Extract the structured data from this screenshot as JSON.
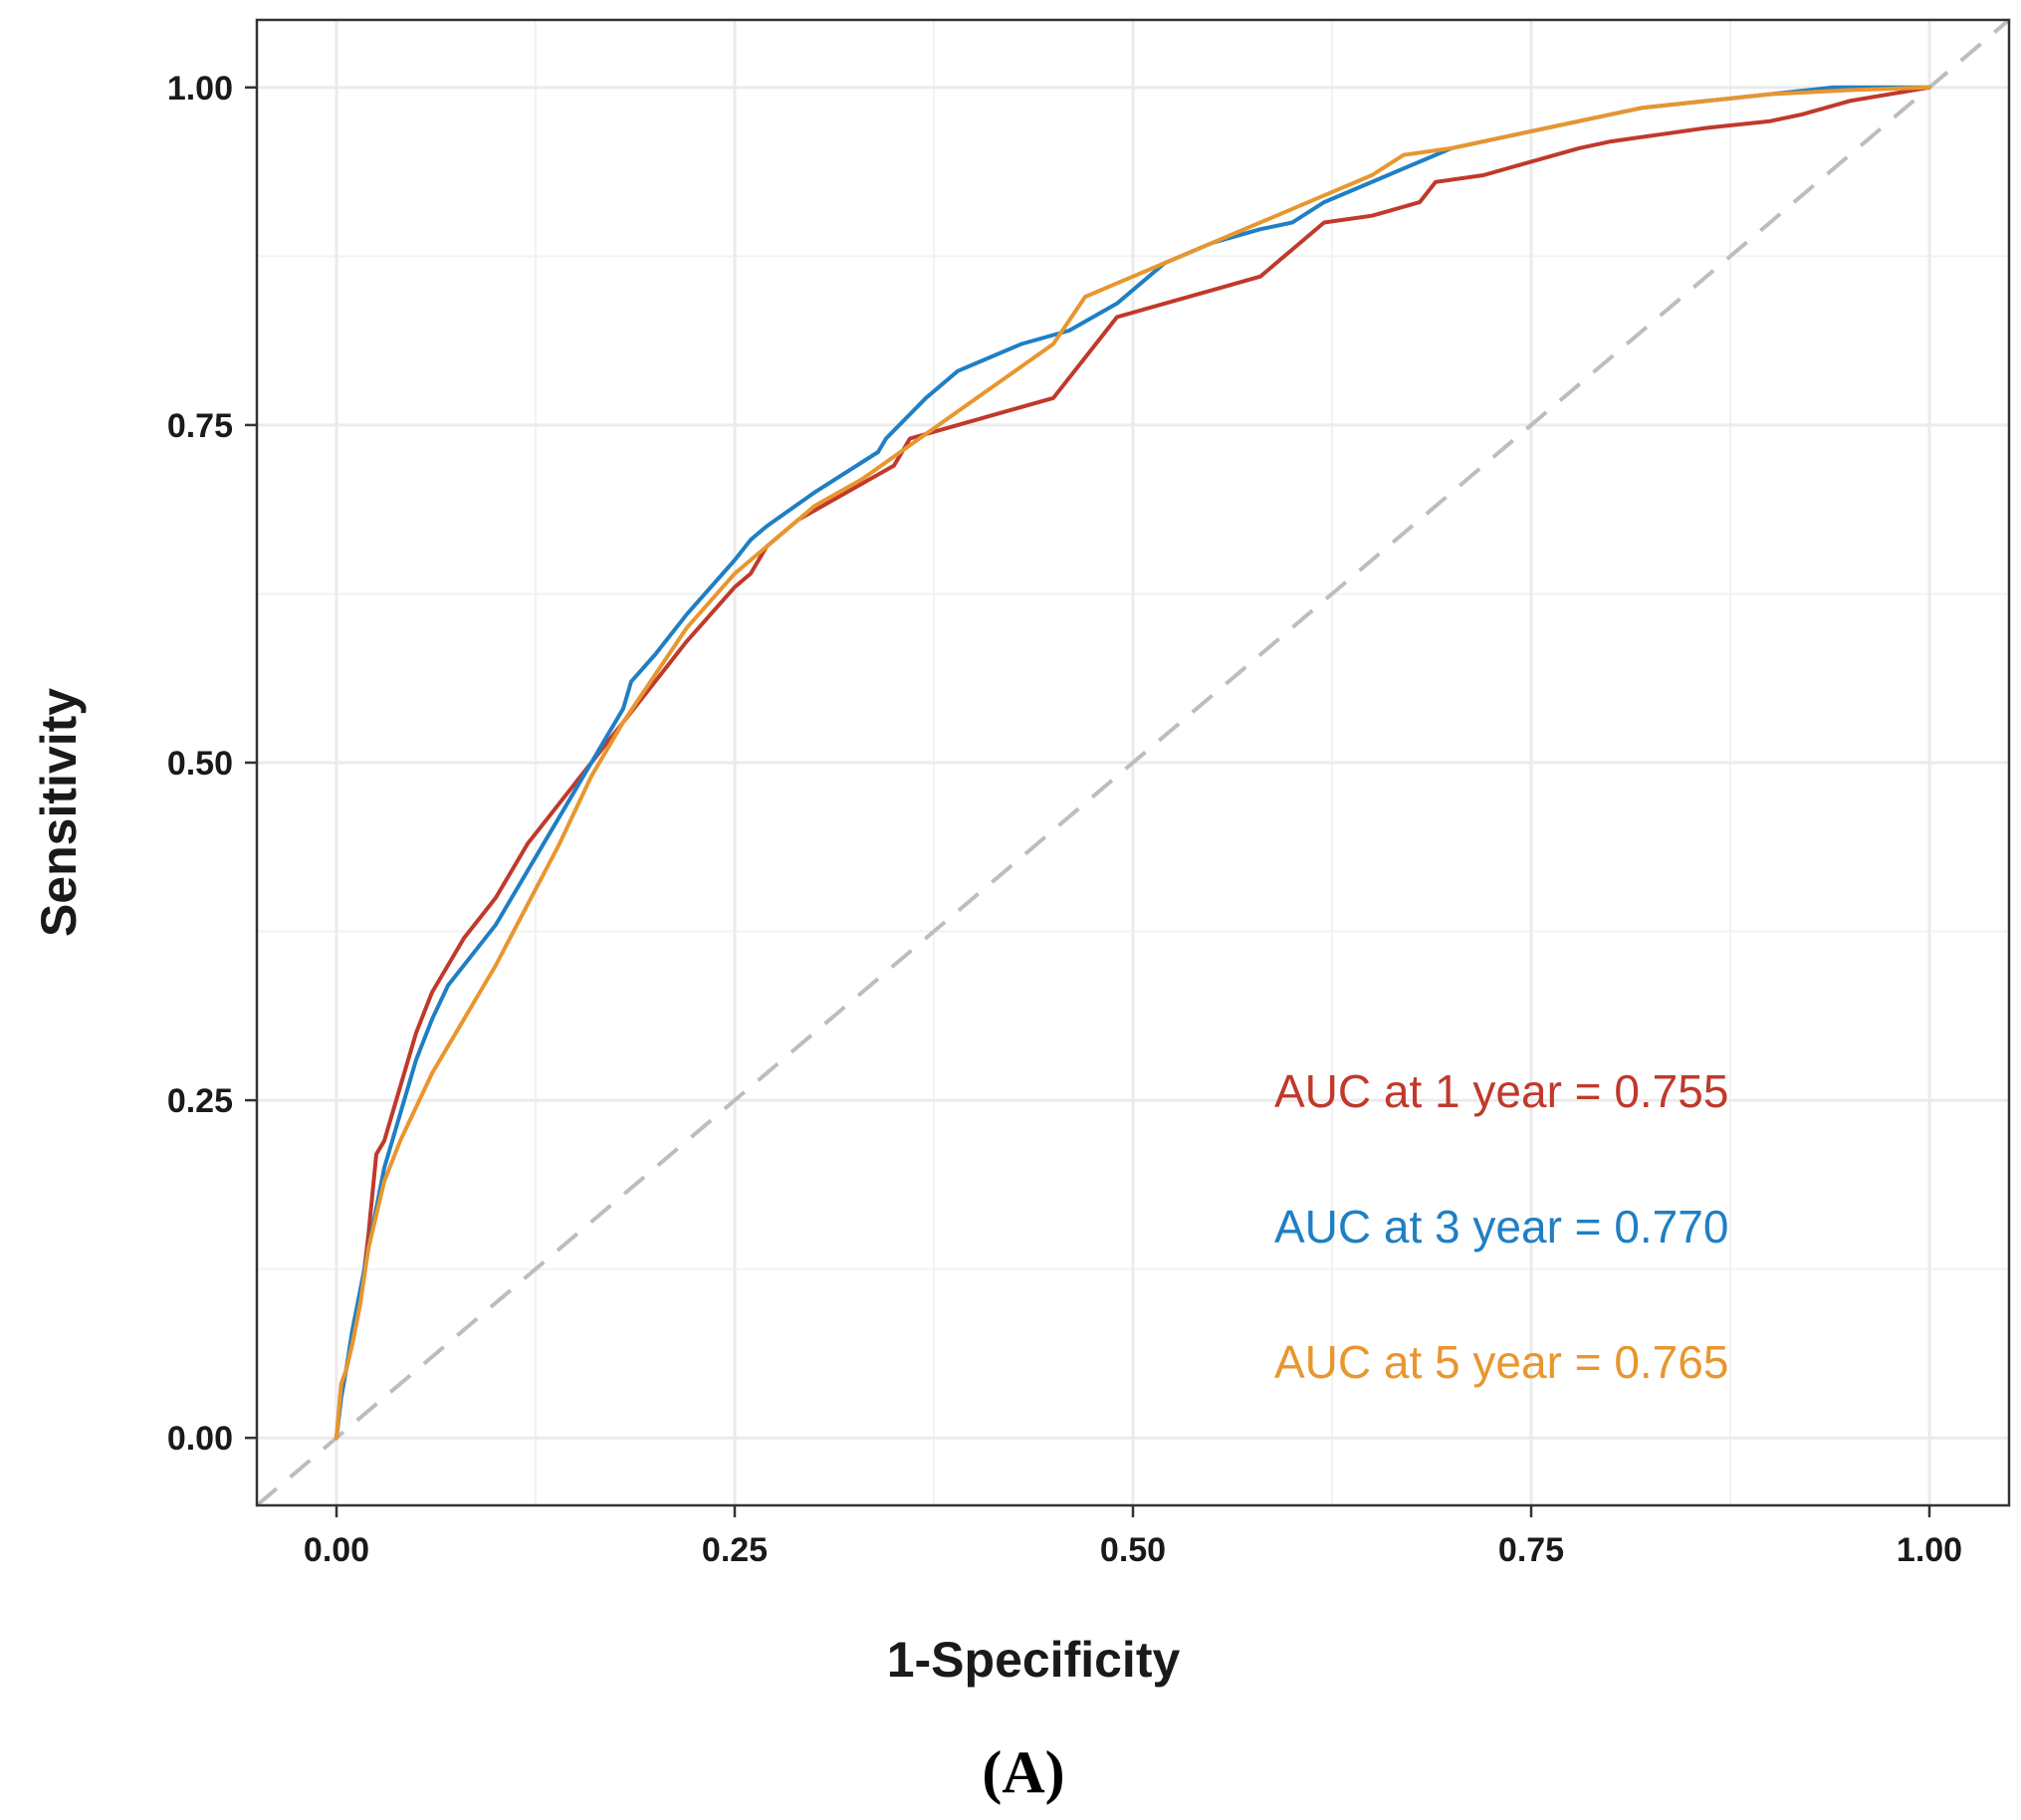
{
  "chart_data": {
    "type": "line",
    "title": "",
    "xlabel": "1-Specificity",
    "ylabel": "Sensitivity",
    "panel_label": "(A)",
    "xlim": [
      -0.05,
      1.05
    ],
    "ylim": [
      -0.05,
      1.05
    ],
    "x_ticks": [
      0,
      0.25,
      0.5,
      0.75,
      1
    ],
    "x_tick_labels": [
      "0.00",
      "0.25",
      "0.50",
      "0.75",
      "1.00"
    ],
    "y_ticks": [
      0,
      0.25,
      0.5,
      0.75,
      1
    ],
    "y_tick_labels": [
      "0.00",
      "0.25",
      "0.50",
      "0.75",
      "1.00"
    ],
    "grid": true,
    "reference_line": {
      "x": [
        -0.05,
        1.05
      ],
      "y": [
        -0.05,
        1.05
      ],
      "color": "#bdbdbd",
      "style": "dashed"
    },
    "series": [
      {
        "name": "1 year",
        "color": "#c0392b",
        "x": [
          0,
          0.003,
          0.006,
          0.01,
          0.015,
          0.02,
          0.025,
          0.03,
          0.04,
          0.05,
          0.06,
          0.07,
          0.08,
          0.09,
          0.1,
          0.12,
          0.14,
          0.16,
          0.18,
          0.2,
          0.22,
          0.25,
          0.26,
          0.27,
          0.29,
          0.32,
          0.35,
          0.36,
          0.39,
          0.42,
          0.45,
          0.47,
          0.49,
          0.52,
          0.55,
          0.58,
          0.6,
          0.62,
          0.65,
          0.68,
          0.69,
          0.72,
          0.75,
          0.78,
          0.8,
          0.83,
          0.86,
          0.9,
          0.92,
          0.95,
          1.0
        ],
        "y": [
          0,
          0.04,
          0.05,
          0.07,
          0.1,
          0.15,
          0.21,
          0.22,
          0.26,
          0.3,
          0.33,
          0.35,
          0.37,
          0.385,
          0.4,
          0.44,
          0.47,
          0.5,
          0.53,
          0.56,
          0.59,
          0.63,
          0.64,
          0.66,
          0.68,
          0.7,
          0.72,
          0.74,
          0.75,
          0.76,
          0.77,
          0.8,
          0.83,
          0.84,
          0.85,
          0.86,
          0.88,
          0.9,
          0.905,
          0.915,
          0.93,
          0.935,
          0.945,
          0.955,
          0.96,
          0.965,
          0.97,
          0.975,
          0.98,
          0.99,
          1.0
        ]
      },
      {
        "name": "3 year",
        "color": "#1f7fc4",
        "x": [
          0,
          0.003,
          0.006,
          0.01,
          0.015,
          0.02,
          0.03,
          0.04,
          0.05,
          0.06,
          0.07,
          0.08,
          0.1,
          0.12,
          0.14,
          0.16,
          0.18,
          0.185,
          0.2,
          0.22,
          0.25,
          0.26,
          0.27,
          0.3,
          0.34,
          0.345,
          0.37,
          0.39,
          0.4,
          0.43,
          0.46,
          0.49,
          0.52,
          0.55,
          0.58,
          0.6,
          0.62,
          0.66,
          0.7,
          0.74,
          0.78,
          0.82,
          0.86,
          0.9,
          0.94,
          1.0
        ],
        "y": [
          0,
          0.03,
          0.05,
          0.08,
          0.11,
          0.14,
          0.2,
          0.24,
          0.28,
          0.31,
          0.335,
          0.35,
          0.38,
          0.42,
          0.46,
          0.5,
          0.54,
          0.56,
          0.58,
          0.61,
          0.65,
          0.665,
          0.675,
          0.7,
          0.73,
          0.74,
          0.77,
          0.79,
          0.795,
          0.81,
          0.82,
          0.84,
          0.87,
          0.885,
          0.895,
          0.9,
          0.915,
          0.935,
          0.955,
          0.965,
          0.975,
          0.985,
          0.99,
          0.995,
          1.0,
          1.0
        ]
      },
      {
        "name": "5 year",
        "color": "#e8962e",
        "x": [
          0,
          0.003,
          0.006,
          0.01,
          0.015,
          0.02,
          0.03,
          0.04,
          0.05,
          0.06,
          0.07,
          0.08,
          0.1,
          0.12,
          0.14,
          0.16,
          0.18,
          0.2,
          0.22,
          0.25,
          0.28,
          0.3,
          0.33,
          0.36,
          0.39,
          0.42,
          0.45,
          0.47,
          0.5,
          0.53,
          0.56,
          0.59,
          0.62,
          0.65,
          0.67,
          0.7,
          0.74,
          0.78,
          0.82,
          0.86,
          0.9,
          0.95,
          1.0
        ],
        "y": [
          0,
          0.04,
          0.05,
          0.07,
          0.1,
          0.14,
          0.19,
          0.22,
          0.245,
          0.27,
          0.29,
          0.31,
          0.35,
          0.395,
          0.44,
          0.49,
          0.53,
          0.565,
          0.6,
          0.64,
          0.67,
          0.69,
          0.71,
          0.735,
          0.76,
          0.785,
          0.81,
          0.845,
          0.86,
          0.875,
          0.89,
          0.905,
          0.92,
          0.935,
          0.95,
          0.955,
          0.965,
          0.975,
          0.985,
          0.99,
          0.995,
          0.998,
          1.0
        ]
      }
    ],
    "annotations": [
      {
        "text": "AUC at 1 year = 0.755",
        "color": "#c0392b"
      },
      {
        "text": "AUC at 3 year = 0.770",
        "color": "#1f7fc4"
      },
      {
        "text": "AUC at 5 year = 0.765",
        "color": "#e8962e"
      }
    ]
  }
}
